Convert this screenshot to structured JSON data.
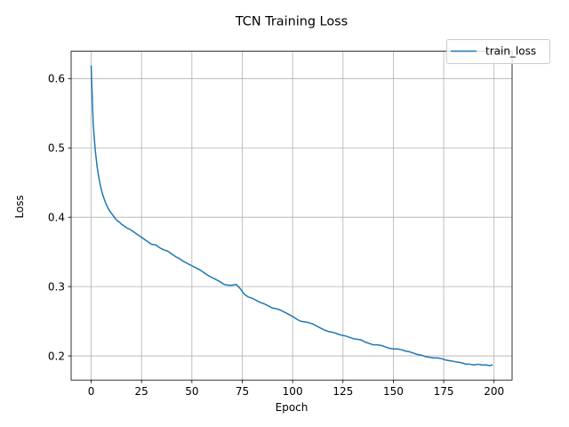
{
  "chart_data": {
    "type": "line",
    "title": "TCN Training Loss",
    "xlabel": "Epoch",
    "ylabel": "Loss",
    "xlim": [
      -9.95,
      208.95
    ],
    "ylim": [
      0.1652,
      0.6394
    ],
    "xticks": [
      0,
      25,
      50,
      75,
      100,
      125,
      150,
      175,
      200
    ],
    "yticks": [
      0.2,
      0.3,
      0.4,
      0.5,
      0.6
    ],
    "ytick_labels": [
      "0.2",
      "0.3",
      "0.4",
      "0.5",
      "0.6"
    ],
    "grid": true,
    "legend_position": "top-right",
    "series": [
      {
        "name": "train_loss",
        "color": "#1f77b4",
        "x": [
          0,
          1,
          2,
          3,
          4,
          5,
          6,
          7,
          8,
          9,
          10,
          11,
          12,
          13,
          14,
          15,
          16,
          17,
          18,
          19,
          20,
          22,
          24,
          26,
          28,
          30,
          32,
          34,
          36,
          38,
          40,
          42,
          44,
          46,
          48,
          50,
          52,
          54,
          56,
          58,
          60,
          62,
          64,
          66,
          68,
          70,
          72,
          74,
          76,
          78,
          80,
          82,
          84,
          86,
          88,
          90,
          92,
          94,
          96,
          98,
          100,
          102,
          104,
          106,
          108,
          110,
          112,
          114,
          116,
          118,
          120,
          122,
          124,
          126,
          128,
          130,
          132,
          134,
          136,
          138,
          140,
          142,
          144,
          146,
          148,
          150,
          152,
          154,
          156,
          158,
          160,
          162,
          164,
          166,
          168,
          170,
          172,
          174,
          176,
          178,
          180,
          182,
          184,
          186,
          188,
          190,
          192,
          194,
          196,
          198,
          199
        ],
        "y": [
          0.618,
          0.535,
          0.497,
          0.472,
          0.454,
          0.44,
          0.43,
          0.422,
          0.415,
          0.41,
          0.406,
          0.402,
          0.398,
          0.395,
          0.393,
          0.39,
          0.388,
          0.386,
          0.384,
          0.383,
          0.381,
          0.377,
          0.373,
          0.369,
          0.365,
          0.361,
          0.36,
          0.356,
          0.353,
          0.351,
          0.347,
          0.343,
          0.34,
          0.336,
          0.333,
          0.33,
          0.327,
          0.324,
          0.32,
          0.316,
          0.313,
          0.31,
          0.307,
          0.303,
          0.302,
          0.302,
          0.303,
          0.297,
          0.289,
          0.285,
          0.283,
          0.28,
          0.277,
          0.275,
          0.272,
          0.269,
          0.268,
          0.266,
          0.263,
          0.26,
          0.257,
          0.253,
          0.25,
          0.249,
          0.248,
          0.246,
          0.243,
          0.24,
          0.237,
          0.235,
          0.234,
          0.232,
          0.23,
          0.229,
          0.227,
          0.225,
          0.224,
          0.223,
          0.22,
          0.218,
          0.216,
          0.216,
          0.215,
          0.213,
          0.211,
          0.21,
          0.21,
          0.209,
          0.207,
          0.206,
          0.204,
          0.202,
          0.201,
          0.199,
          0.198,
          0.197,
          0.197,
          0.196,
          0.194,
          0.193,
          0.192,
          0.191,
          0.19,
          0.188,
          0.188,
          0.187,
          0.188,
          0.187,
          0.187,
          0.186,
          0.187
        ]
      }
    ]
  }
}
